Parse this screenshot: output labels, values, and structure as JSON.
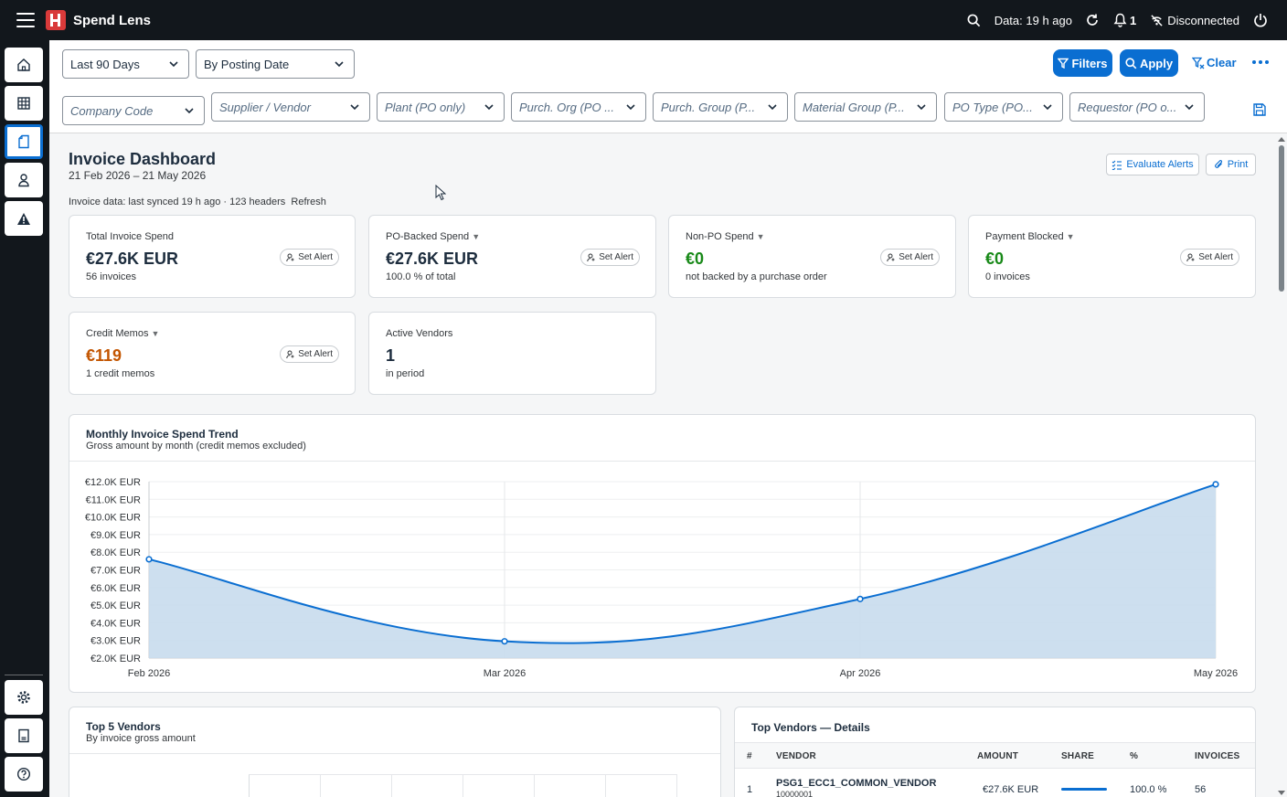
{
  "shell": {
    "app_title": "Spend Lens",
    "data_age": "Data: 19 h ago",
    "notification_count": "1",
    "connection_status": "Disconnected"
  },
  "filters": {
    "period": "Last 90 Days",
    "date_basis": "By Posting Date",
    "filters_label": "Filters",
    "apply_label": "Apply",
    "clear_label": "Clear",
    "company_code": "Company Code",
    "supplier": "Supplier / Vendor",
    "plant": "Plant (PO only)",
    "purch_org": "Purch. Org (PO ...",
    "purch_group": "Purch. Group (P...",
    "material_group": "Material Group (P...",
    "po_type": "PO Type (PO...",
    "requestor": "Requestor (PO o..."
  },
  "dashboard": {
    "title": "Invoice Dashboard",
    "date_range": "21 Feb 2026 – 21 May 2026",
    "sync_info": "Invoice data: last synced 19 h ago · 123 headers",
    "refresh_label": "Refresh",
    "evaluate_alerts": "Evaluate Alerts",
    "print": "Print"
  },
  "kpis": {
    "total": {
      "label": "Total Invoice Spend",
      "value": "€27.6K EUR",
      "sub": "56 invoices",
      "alert": "Set Alert"
    },
    "po_backed": {
      "label": "PO-Backed Spend",
      "value": "€27.6K EUR",
      "sub": "100.0 % of total",
      "alert": "Set Alert"
    },
    "non_po": {
      "label": "Non-PO Spend",
      "value": "€0",
      "sub": "not backed by a purchase order",
      "alert": "Set Alert"
    },
    "blocked": {
      "label": "Payment Blocked",
      "value": "€0",
      "sub": "0 invoices",
      "alert": "Set Alert"
    },
    "credit": {
      "label": "Credit Memos",
      "value": "€119",
      "sub": "1 credit memos",
      "alert": "Set Alert"
    },
    "vendors": {
      "label": "Active Vendors",
      "value": "1",
      "sub": "in period"
    }
  },
  "trend": {
    "title": "Monthly Invoice Spend Trend",
    "subtitle": "Gross amount by month (credit memos excluded)"
  },
  "chart_data": {
    "type": "area",
    "title": "Monthly Invoice Spend Trend",
    "subtitle": "Gross amount by month (credit memos excluded)",
    "categories": [
      "Feb 2026",
      "Mar 2026",
      "Apr 2026",
      "May 2026"
    ],
    "values": [
      7600,
      2950,
      5350,
      11850
    ],
    "ylim": [
      2000,
      12000
    ],
    "yticks": [
      12000,
      11000,
      10000,
      9000,
      8000,
      7000,
      6000,
      5000,
      4000,
      3000,
      2000
    ],
    "ytick_labels": [
      "€12.0K EUR",
      "€11.0K EUR",
      "€10.0K EUR",
      "€9.0K EUR",
      "€8.0K EUR",
      "€7.0K EUR",
      "€6.0K EUR",
      "€5.0K EUR",
      "€4.0K EUR",
      "€3.0K EUR",
      "€2.0K EUR"
    ],
    "grid": true,
    "color": "#0a6ed1",
    "fill": "#c8dced"
  },
  "top_vendors": {
    "title": "Top 5 Vendors",
    "subtitle": "By invoice gross amount"
  },
  "vendor_details": {
    "title": "Top Vendors — Details",
    "columns": [
      "#",
      "VENDOR",
      "AMOUNT",
      "SHARE",
      "%",
      "INVOICES"
    ],
    "rows": [
      {
        "rank": "1",
        "vendor": "PSG1_ECC1_COMMON_VENDOR",
        "vendor_id": "10000001",
        "amount": "€27.6K EUR",
        "share": 1.0,
        "pct": "100.0 %",
        "invoices": "56"
      }
    ]
  }
}
